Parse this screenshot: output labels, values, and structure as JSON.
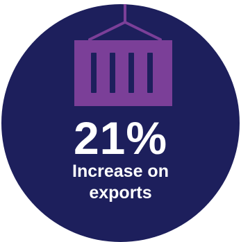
{
  "stat": {
    "value": "21%",
    "caption_line1": "Increase on",
    "caption_line2": "exports"
  },
  "icon": {
    "name": "shipping-container-icon",
    "color": "#7b3f98"
  },
  "colors": {
    "circle": "#1d1f5c",
    "text": "#ffffff",
    "accent": "#7b3f98"
  }
}
